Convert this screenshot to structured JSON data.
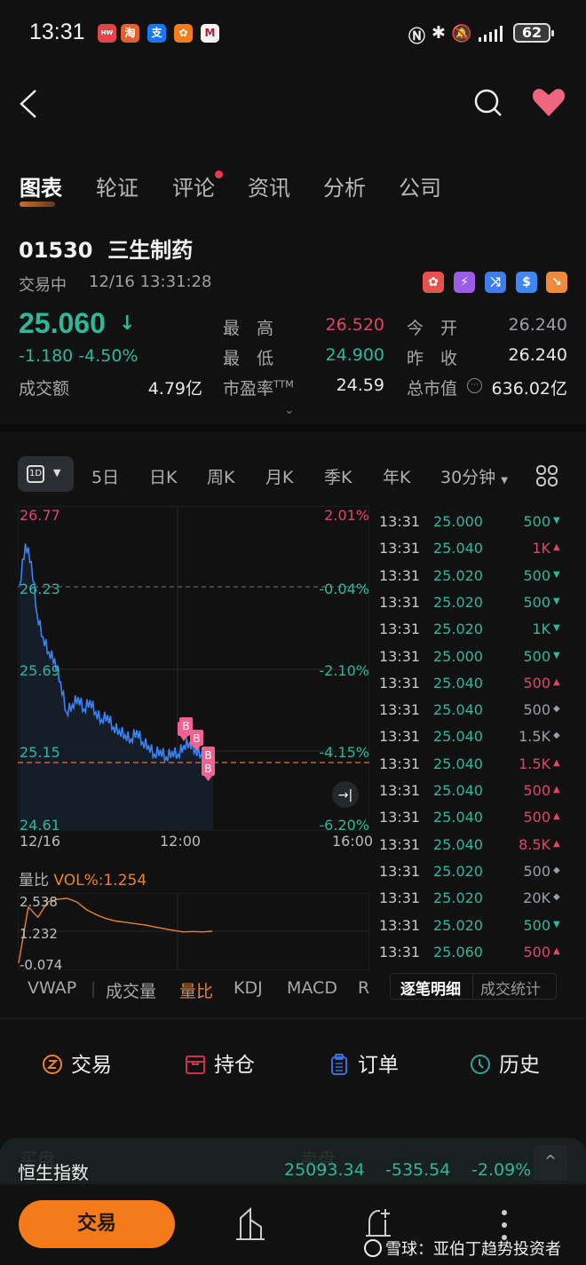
{
  "status_bar": {
    "time": "13:31",
    "app_icons": [
      {
        "name": "huawei-appgallery-icon",
        "color": "#e8424a",
        "glyph": "HW"
      },
      {
        "name": "taobao-icon",
        "color": "#e3622b",
        "glyph": "淘"
      },
      {
        "name": "alipay-icon",
        "color": "#1677ff",
        "glyph": "支"
      },
      {
        "name": "orange-app-icon",
        "color": "#f07d1a",
        "glyph": "✿"
      },
      {
        "name": "cmb-bank-icon",
        "color": "#f4f4f4",
        "glyph": "M"
      }
    ],
    "battery": "62"
  },
  "nav": {
    "back": "<",
    "search_icon": "search-icon",
    "favorite_icon": "heart-icon"
  },
  "tabs": [
    {
      "label": "图表",
      "active": true
    },
    {
      "label": "轮证",
      "active": false
    },
    {
      "label": "评论",
      "active": false,
      "badge_dot": true
    },
    {
      "label": "资讯",
      "active": false
    },
    {
      "label": "分析",
      "active": false
    },
    {
      "label": "公司",
      "active": false
    }
  ],
  "stock": {
    "code": "01530",
    "name": "三生制药",
    "title": "01530  三生制药",
    "status": "交易中",
    "datetime": "12/16 13:31:28",
    "badges": [
      {
        "name": "hk-market-badge",
        "color": "#e8524e",
        "glyph": "✿"
      },
      {
        "name": "level2-badge",
        "color": "#9b5de5",
        "glyph": "⚡"
      },
      {
        "name": "connect-badge",
        "color": "#3d7df0",
        "glyph": "⤨"
      },
      {
        "name": "dollar-badge",
        "color": "#3d88f5",
        "glyph": "$"
      },
      {
        "name": "short-sell-badge",
        "color": "#f08a3a",
        "glyph": "↘"
      }
    ],
    "price": "25.060",
    "price_arrow": "↓",
    "change": "-1.180 -4.50%",
    "turnover_label": "成交额",
    "turnover": "4.79亿",
    "high_label": "最　高",
    "high": "26.520",
    "low_label": "最　低",
    "low": "24.900",
    "pe_label": "市盈率",
    "pe_suffix": "TTM",
    "pe": "24.59",
    "open_label": "今　开",
    "open": "26.240",
    "prev_close_label": "昨　收",
    "prev_close": "26.240",
    "market_cap_label": "总市值",
    "market_cap": "636.02亿",
    "expand": "⌄"
  },
  "periods": {
    "selected": "1D",
    "items": [
      "5日",
      "日K",
      "周K",
      "月K",
      "季K",
      "年K"
    ],
    "minute_select": "30分钟",
    "grid_icon": "grid-icon"
  },
  "chart_data": {
    "type": "line",
    "title": "01530 三生制药 分时",
    "x_ticks": [
      "12/16",
      "12:00",
      "16:00"
    ],
    "y_left_ticks": [
      "26.77",
      "26.23",
      "25.69",
      "25.15",
      "24.61"
    ],
    "y_right_ticks": [
      "2.01%",
      "-0.04%",
      "-2.10%",
      "-4.15%",
      "-6.20%"
    ],
    "ylim": [
      24.61,
      26.77
    ],
    "prev_close_line": 26.24,
    "current_price_line": 25.06,
    "series": [
      {
        "name": "price",
        "color": "#3b82f6",
        "values": [
          26.24,
          26.52,
          26.4,
          26.05,
          25.9,
          25.8,
          25.75,
          25.6,
          25.4,
          25.45,
          25.5,
          25.42,
          25.48,
          25.4,
          25.35,
          25.38,
          25.3,
          25.28,
          25.25,
          25.22,
          25.28,
          25.2,
          25.18,
          25.12,
          25.15,
          25.1,
          25.14,
          25.12,
          25.18,
          25.2,
          25.15,
          25.12,
          25.1,
          25.06
        ]
      },
      {
        "name": "vol_ratio",
        "color": "#e8822e",
        "values": [
          0.0,
          2.2,
          1.8,
          2.4,
          2.5,
          2.54,
          2.4,
          2.1,
          1.9,
          1.75,
          1.65,
          1.6,
          1.55,
          1.5,
          1.42,
          1.35,
          1.28,
          1.22,
          1.24,
          1.22,
          1.25
        ]
      }
    ],
    "markers": [
      "B",
      "B",
      "B",
      "B",
      "B",
      "B"
    ],
    "grid": true
  },
  "volume_panel": {
    "label": "量比",
    "value_label": "VOL%:1.254",
    "y_ticks": [
      "2.538",
      "1.232",
      "-0.074"
    ]
  },
  "indicator_tabs": [
    {
      "label": "VWAP",
      "active": false
    },
    {
      "label": "成交量",
      "active": false
    },
    {
      "label": "量比",
      "active": true
    },
    {
      "label": "KDJ",
      "active": false
    },
    {
      "label": "MACD",
      "active": false
    },
    {
      "label": "R",
      "active": false
    }
  ],
  "ticks": [
    {
      "time": "13:31",
      "price": "25.000",
      "vol": "500",
      "dir": "down"
    },
    {
      "time": "13:31",
      "price": "25.040",
      "vol": "1K",
      "dir": "up"
    },
    {
      "time": "13:31",
      "price": "25.020",
      "vol": "500",
      "dir": "down"
    },
    {
      "time": "13:31",
      "price": "25.020",
      "vol": "500",
      "dir": "down"
    },
    {
      "time": "13:31",
      "price": "25.020",
      "vol": "1K",
      "dir": "down"
    },
    {
      "time": "13:31",
      "price": "25.000",
      "vol": "500",
      "dir": "down"
    },
    {
      "time": "13:31",
      "price": "25.040",
      "vol": "500",
      "dir": "up"
    },
    {
      "time": "13:31",
      "price": "25.040",
      "vol": "500",
      "dir": "neutral"
    },
    {
      "time": "13:31",
      "price": "25.040",
      "vol": "1.5K",
      "dir": "neutral"
    },
    {
      "time": "13:31",
      "price": "25.040",
      "vol": "1.5K",
      "dir": "up"
    },
    {
      "time": "13:31",
      "price": "25.040",
      "vol": "500",
      "dir": "up"
    },
    {
      "time": "13:31",
      "price": "25.040",
      "vol": "500",
      "dir": "up"
    },
    {
      "time": "13:31",
      "price": "25.040",
      "vol": "8.5K",
      "dir": "up"
    },
    {
      "time": "13:31",
      "price": "25.020",
      "vol": "500",
      "dir": "neutral"
    },
    {
      "time": "13:31",
      "price": "25.020",
      "vol": "20K",
      "dir": "neutral"
    },
    {
      "time": "13:31",
      "price": "25.020",
      "vol": "500",
      "dir": "down"
    },
    {
      "time": "13:31",
      "price": "25.060",
      "vol": "500",
      "dir": "up"
    }
  ],
  "tick_tabs": [
    {
      "label": "逐笔明细",
      "active": true
    },
    {
      "label": "成交统计",
      "active": false
    }
  ],
  "actions": [
    {
      "label": "交易",
      "icon": "trade-icon",
      "color": "#e8822e"
    },
    {
      "label": "持仓",
      "icon": "position-icon",
      "color": "#c8344a"
    },
    {
      "label": "订单",
      "icon": "order-icon",
      "color": "#3a6fe0"
    },
    {
      "label": "历史",
      "icon": "history-icon",
      "color": "#2ea59a"
    }
  ],
  "index_bar": {
    "ghost_left": "买盘",
    "ghost_right": "卖盘",
    "name": "恒生指数",
    "value": "25093.34",
    "change": "-535.54",
    "percent": "-2.09%",
    "collapse": "^"
  },
  "bottom_bar": {
    "trade_button": "交易",
    "watermark": "雪球：亚伯丁趋势投资者"
  },
  "colors": {
    "up": "#e0446a",
    "down": "#2eb89a",
    "neutral": "#9aa0a8",
    "accent": "#f57a1a",
    "line": "#3b82f6"
  }
}
